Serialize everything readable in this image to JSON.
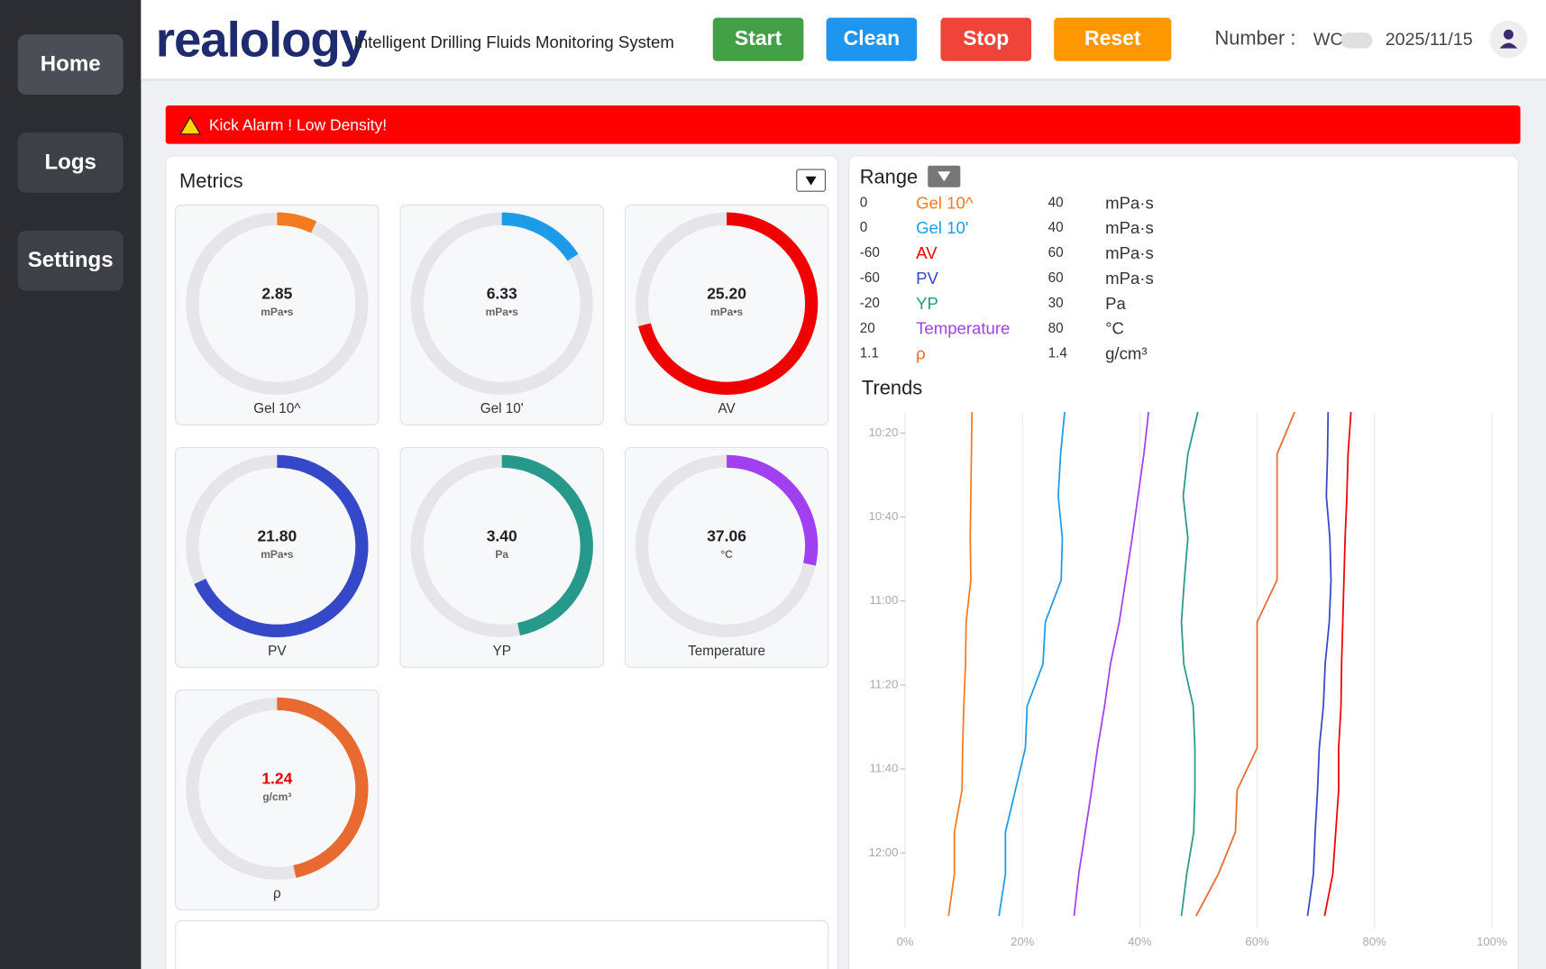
{
  "sidebar": {
    "items": [
      "Home",
      "Logs",
      "Settings"
    ]
  },
  "header": {
    "logo": "realology",
    "subtitle": "Intelligent Drilling Fluids Monitoring System",
    "buttons": [
      {
        "label": "Start",
        "color": "#43a047"
      },
      {
        "label": "Clean",
        "color": "#1e96f0"
      },
      {
        "label": "Stop",
        "color": "#f0433a"
      },
      {
        "label": "Reset",
        "color": "#ff9800"
      }
    ],
    "number_label": "Number :",
    "number": "WC",
    "date": "2025/11/15"
  },
  "alarm": "Kick Alarm ! Low Density!",
  "metrics": {
    "title": "Metrics",
    "gauges": [
      {
        "name": "Gel 10^",
        "value": 2.85,
        "label": "2.85",
        "unit": "mPa•s",
        "color": "#f47a20"
      },
      {
        "name": "Gel 10'",
        "value": 6.33,
        "label": "6.33",
        "unit": "mPa•s",
        "color": "#1e9be8"
      },
      {
        "name": "AV",
        "value": 25.2,
        "label": "25.20",
        "unit": "mPa•s",
        "color": "#f00000"
      },
      {
        "name": "PV",
        "value": 21.8,
        "label": "21.80",
        "unit": "mPa•s",
        "color": "#3548c8"
      },
      {
        "name": "YP",
        "value": 3.4,
        "label": "3.40",
        "unit": "Pa",
        "color": "#26998a"
      },
      {
        "name": "Temperature",
        "value": 37.06,
        "label": "37.06",
        "unit": "°C",
        "color": "#a040f0"
      },
      {
        "name": "ρ",
        "value": 1.24,
        "label": "1.24",
        "unit": "g/cm³",
        "color": "#e86a30",
        "alert": true
      }
    ]
  },
  "range": {
    "title": "Range",
    "rows": [
      {
        "min": 0,
        "name": "Gel 10^",
        "max": 40,
        "unit": "mPa·s"
      },
      {
        "min": 0,
        "name": "Gel 10'",
        "max": 40,
        "unit": "mPa·s"
      },
      {
        "min": -60,
        "name": "AV",
        "max": 60,
        "unit": "mPa·s"
      },
      {
        "min": -60,
        "name": "PV",
        "max": 60,
        "unit": "mPa·s"
      },
      {
        "min": -20,
        "name": "YP",
        "max": 30,
        "unit": "Pa"
      },
      {
        "min": 20,
        "name": "Temperature",
        "max": 80,
        "unit": "°C"
      },
      {
        "min": 1.1,
        "name": "ρ",
        "max": 1.4,
        "unit": "g/cm³"
      }
    ]
  },
  "trends": {
    "title": "Trends",
    "times": [
      "10:15",
      "10:25",
      "10:35",
      "10:45",
      "10:55",
      "11:05",
      "11:15",
      "11:25",
      "11:35",
      "11:45",
      "11:55",
      "12:05",
      "12:15"
    ],
    "series": [
      {
        "values": [
          11.4,
          11.3,
          11.2,
          11.1,
          11.2,
          10.4,
          10.3,
          10.0,
          9.8,
          9.7,
          8.4,
          8.4,
          7.4
        ]
      },
      {
        "values": [
          27.2,
          26.5,
          26.1,
          26.8,
          26.6,
          23.9,
          23.5,
          20.8,
          20.5,
          18.8,
          17.1,
          17.1,
          16.0
        ]
      },
      {
        "values": [
          76.0,
          75.5,
          75.3,
          75.0,
          74.8,
          74.6,
          74.4,
          74.3,
          73.9,
          73.9,
          73.4,
          72.9,
          71.5
        ]
      },
      {
        "values": [
          72.1,
          72.0,
          71.8,
          72.4,
          72.6,
          72.3,
          71.6,
          71.3,
          70.6,
          70.3,
          69.9,
          69.6,
          68.6
        ]
      },
      {
        "values": [
          49.9,
          48.2,
          47.4,
          48.2,
          47.6,
          47.1,
          47.5,
          49.1,
          49.4,
          49.4,
          49.2,
          48.0,
          47.1
        ]
      },
      {
        "values": [
          41.5,
          40.7,
          39.7,
          38.7,
          37.6,
          36.5,
          35.0,
          34.0,
          32.8,
          31.8,
          30.7,
          29.6,
          28.8
        ]
      },
      {
        "values": [
          66.4,
          63.4,
          63.4,
          63.4,
          63.4,
          60.0,
          60.0,
          60.0,
          60.0,
          56.6,
          56.3,
          53.4,
          49.6
        ]
      }
    ],
    "xlim": [
      0,
      100
    ],
    "xticks": [
      {
        "value": 0,
        "label": "0%"
      },
      {
        "value": 20,
        "label": "20%"
      },
      {
        "value": 40,
        "label": "40%"
      },
      {
        "value": 60,
        "label": "60%"
      },
      {
        "value": 80,
        "label": "80%"
      },
      {
        "value": 100,
        "label": "100%"
      }
    ],
    "ylim": [
      "10:15",
      "12:18"
    ],
    "yticks": [
      "10:20",
      "10:40",
      "11:00",
      "11:20",
      "11:40",
      "12:00"
    ],
    "grid": true
  }
}
